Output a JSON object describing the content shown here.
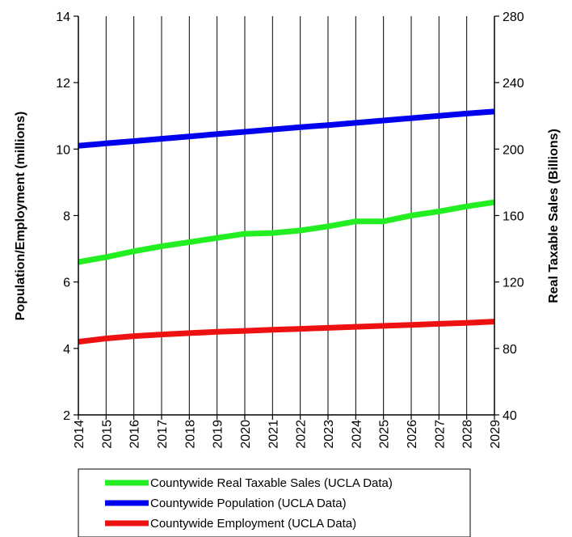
{
  "chart_data": {
    "type": "line",
    "x": [
      2014,
      2015,
      2016,
      2017,
      2018,
      2019,
      2020,
      2021,
      2022,
      2023,
      2024,
      2025,
      2026,
      2027,
      2028,
      2029
    ],
    "xlabels": [
      "2014",
      "2015",
      "2016",
      "2017",
      "2018",
      "2019",
      "2020",
      "2021",
      "2022",
      "2023",
      "2024",
      "2025",
      "2026",
      "2027",
      "2028",
      "2029"
    ],
    "ylabel": "Population/Employment (millions)",
    "ylim": [
      2,
      14
    ],
    "yticks": [
      "2",
      "4",
      "6",
      "8",
      "10",
      "12",
      "14"
    ],
    "y2label": "Real Taxable Sales (Billions)",
    "y2lim": [
      40,
      280
    ],
    "y2ticks": [
      "40",
      "80",
      "120",
      "160",
      "200",
      "240",
      "280"
    ],
    "grid": "vertical",
    "legend_position": "bottom",
    "series": [
      {
        "name": "Countywide Real Taxable Sales (UCLA Data)",
        "color": "#22ee22",
        "axis": "right",
        "values": [
          132,
          135,
          138.5,
          141.5,
          144,
          146.5,
          149,
          149.5,
          151,
          153.5,
          156.5,
          156.5,
          160,
          162.5,
          165.5,
          168
        ]
      },
      {
        "name": "Countywide Population (UCLA Data)",
        "color": "#0000ee",
        "axis": "left",
        "values": [
          10.1,
          10.17,
          10.24,
          10.31,
          10.38,
          10.45,
          10.52,
          10.59,
          10.66,
          10.72,
          10.79,
          10.86,
          10.93,
          11.0,
          11.07,
          11.13
        ]
      },
      {
        "name": "Countywide Employment (UCLA Data)",
        "color": "#ee1111",
        "axis": "left",
        "values": [
          4.2,
          4.3,
          4.37,
          4.42,
          4.46,
          4.5,
          4.53,
          4.56,
          4.59,
          4.62,
          4.65,
          4.68,
          4.71,
          4.74,
          4.77,
          4.81
        ]
      }
    ]
  }
}
